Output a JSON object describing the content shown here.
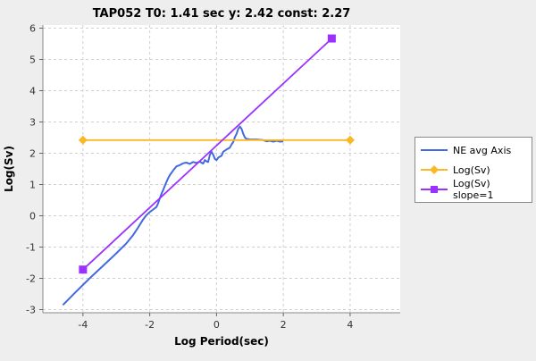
{
  "chart_data": {
    "type": "line",
    "title": "TAP052 T0: 1.41 sec  y: 2.42 const: 2.27",
    "xlabel": "Log Period(sec)",
    "ylabel": "Log(Sv)",
    "xlim": [
      -5.2,
      5.5
    ],
    "ylim": [
      -3.1,
      6.1
    ],
    "xticks": [
      -4,
      -2,
      0,
      2,
      4
    ],
    "yticks": [
      -3,
      -2,
      -1,
      0,
      1,
      2,
      3,
      4,
      5,
      6
    ],
    "grid": true,
    "legend_position": "right",
    "series": [
      {
        "name": "NE avg Axis",
        "color": "#4169e1",
        "points": [
          [
            -4.6,
            -2.85
          ],
          [
            -4.2,
            -2.42
          ],
          [
            -3.8,
            -2.0
          ],
          [
            -3.4,
            -1.6
          ],
          [
            -3.0,
            -1.2
          ],
          [
            -2.7,
            -0.88
          ],
          [
            -2.5,
            -0.62
          ],
          [
            -2.35,
            -0.38
          ],
          [
            -2.2,
            -0.12
          ],
          [
            -2.1,
            0.02
          ],
          [
            -2.0,
            0.12
          ],
          [
            -1.9,
            0.2
          ],
          [
            -1.8,
            0.28
          ],
          [
            -1.75,
            0.4
          ],
          [
            -1.7,
            0.55
          ],
          [
            -1.65,
            0.7
          ],
          [
            -1.6,
            0.82
          ],
          [
            -1.55,
            0.95
          ],
          [
            -1.5,
            1.08
          ],
          [
            -1.45,
            1.2
          ],
          [
            -1.4,
            1.3
          ],
          [
            -1.3,
            1.45
          ],
          [
            -1.2,
            1.58
          ],
          [
            -1.1,
            1.62
          ],
          [
            -1.0,
            1.68
          ],
          [
            -0.9,
            1.7
          ],
          [
            -0.8,
            1.66
          ],
          [
            -0.7,
            1.72
          ],
          [
            -0.6,
            1.69
          ],
          [
            -0.5,
            1.73
          ],
          [
            -0.4,
            1.67
          ],
          [
            -0.35,
            1.78
          ],
          [
            -0.3,
            1.74
          ],
          [
            -0.25,
            1.72
          ],
          [
            -0.2,
            1.95
          ],
          [
            -0.15,
            2.05
          ],
          [
            -0.1,
            1.95
          ],
          [
            -0.05,
            1.82
          ],
          [
            0.0,
            1.78
          ],
          [
            0.05,
            1.86
          ],
          [
            0.15,
            1.92
          ],
          [
            0.2,
            2.05
          ],
          [
            0.3,
            2.12
          ],
          [
            0.4,
            2.18
          ],
          [
            0.45,
            2.28
          ],
          [
            0.5,
            2.36
          ],
          [
            0.55,
            2.52
          ],
          [
            0.6,
            2.62
          ],
          [
            0.65,
            2.78
          ],
          [
            0.7,
            2.85
          ],
          [
            0.75,
            2.78
          ],
          [
            0.8,
            2.62
          ],
          [
            0.85,
            2.5
          ],
          [
            0.9,
            2.46
          ],
          [
            1.0,
            2.44
          ],
          [
            1.2,
            2.44
          ],
          [
            1.4,
            2.42
          ],
          [
            1.5,
            2.38
          ],
          [
            1.6,
            2.4
          ],
          [
            1.7,
            2.37
          ],
          [
            1.8,
            2.4
          ],
          [
            1.9,
            2.37
          ],
          [
            2.0,
            2.38
          ]
        ]
      },
      {
        "name": "Log(Sv)",
        "color": "#f9b824",
        "marker": "diamond",
        "points": [
          [
            -4.0,
            2.42
          ],
          [
            4.0,
            2.42
          ]
        ]
      },
      {
        "name": "Log(Sv) slope=1",
        "color": "#9b30ff",
        "marker": "square",
        "points": [
          [
            -4.0,
            -1.72
          ],
          [
            3.45,
            5.67
          ]
        ]
      }
    ]
  }
}
